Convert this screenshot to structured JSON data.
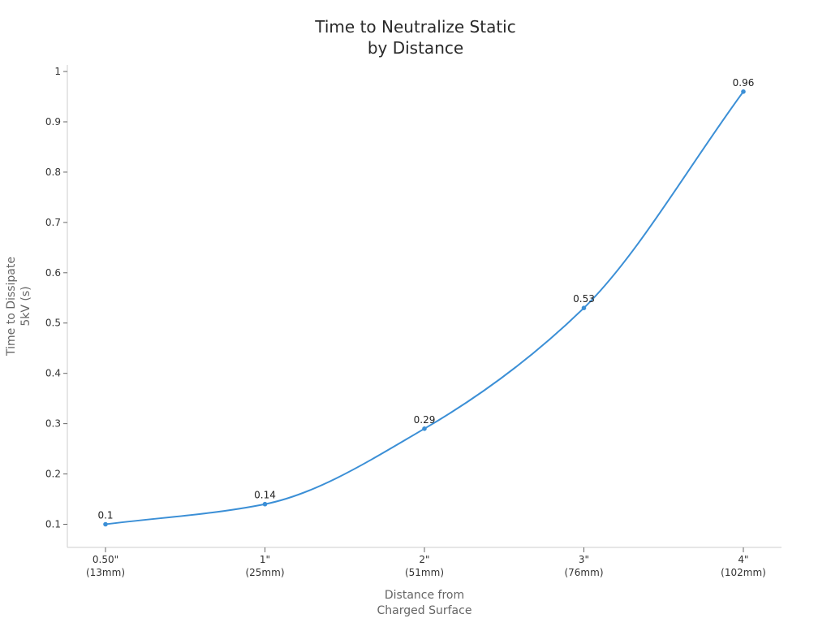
{
  "chart_data": {
    "type": "line",
    "title": [
      "Time to Neutralize Static",
      "by Distance"
    ],
    "xlabel": [
      "Distance from",
      "Charged Surface"
    ],
    "ylabel": [
      "Time to Dissipate",
      "5kV (s)"
    ],
    "categories": [
      [
        "0.50\"",
        "(13mm)"
      ],
      [
        "1\"",
        "(25mm)"
      ],
      [
        "2\"",
        "(51mm)"
      ],
      [
        "3\"",
        "(76mm)"
      ],
      [
        "4\"",
        "(102mm)"
      ]
    ],
    "series": [
      {
        "name": "Time to Dissipate 5kV (s)",
        "values": [
          0.1,
          0.14,
          0.29,
          0.53,
          0.96
        ],
        "color": "#3b8fd6"
      }
    ],
    "data_labels": [
      "0.1",
      "0.14",
      "0.29",
      "0.53",
      "0.96"
    ],
    "yticks": [
      0.1,
      0.2,
      0.3,
      0.4,
      0.5,
      0.6,
      0.7,
      0.8,
      0.9,
      1
    ],
    "ytick_labels": [
      "0.1",
      "0.2",
      "0.3",
      "0.4",
      "0.5",
      "0.6",
      "0.7",
      "0.8",
      "0.9",
      "1"
    ],
    "ylim": [
      0.054,
      1.013
    ],
    "grid": false,
    "legend": "none"
  }
}
